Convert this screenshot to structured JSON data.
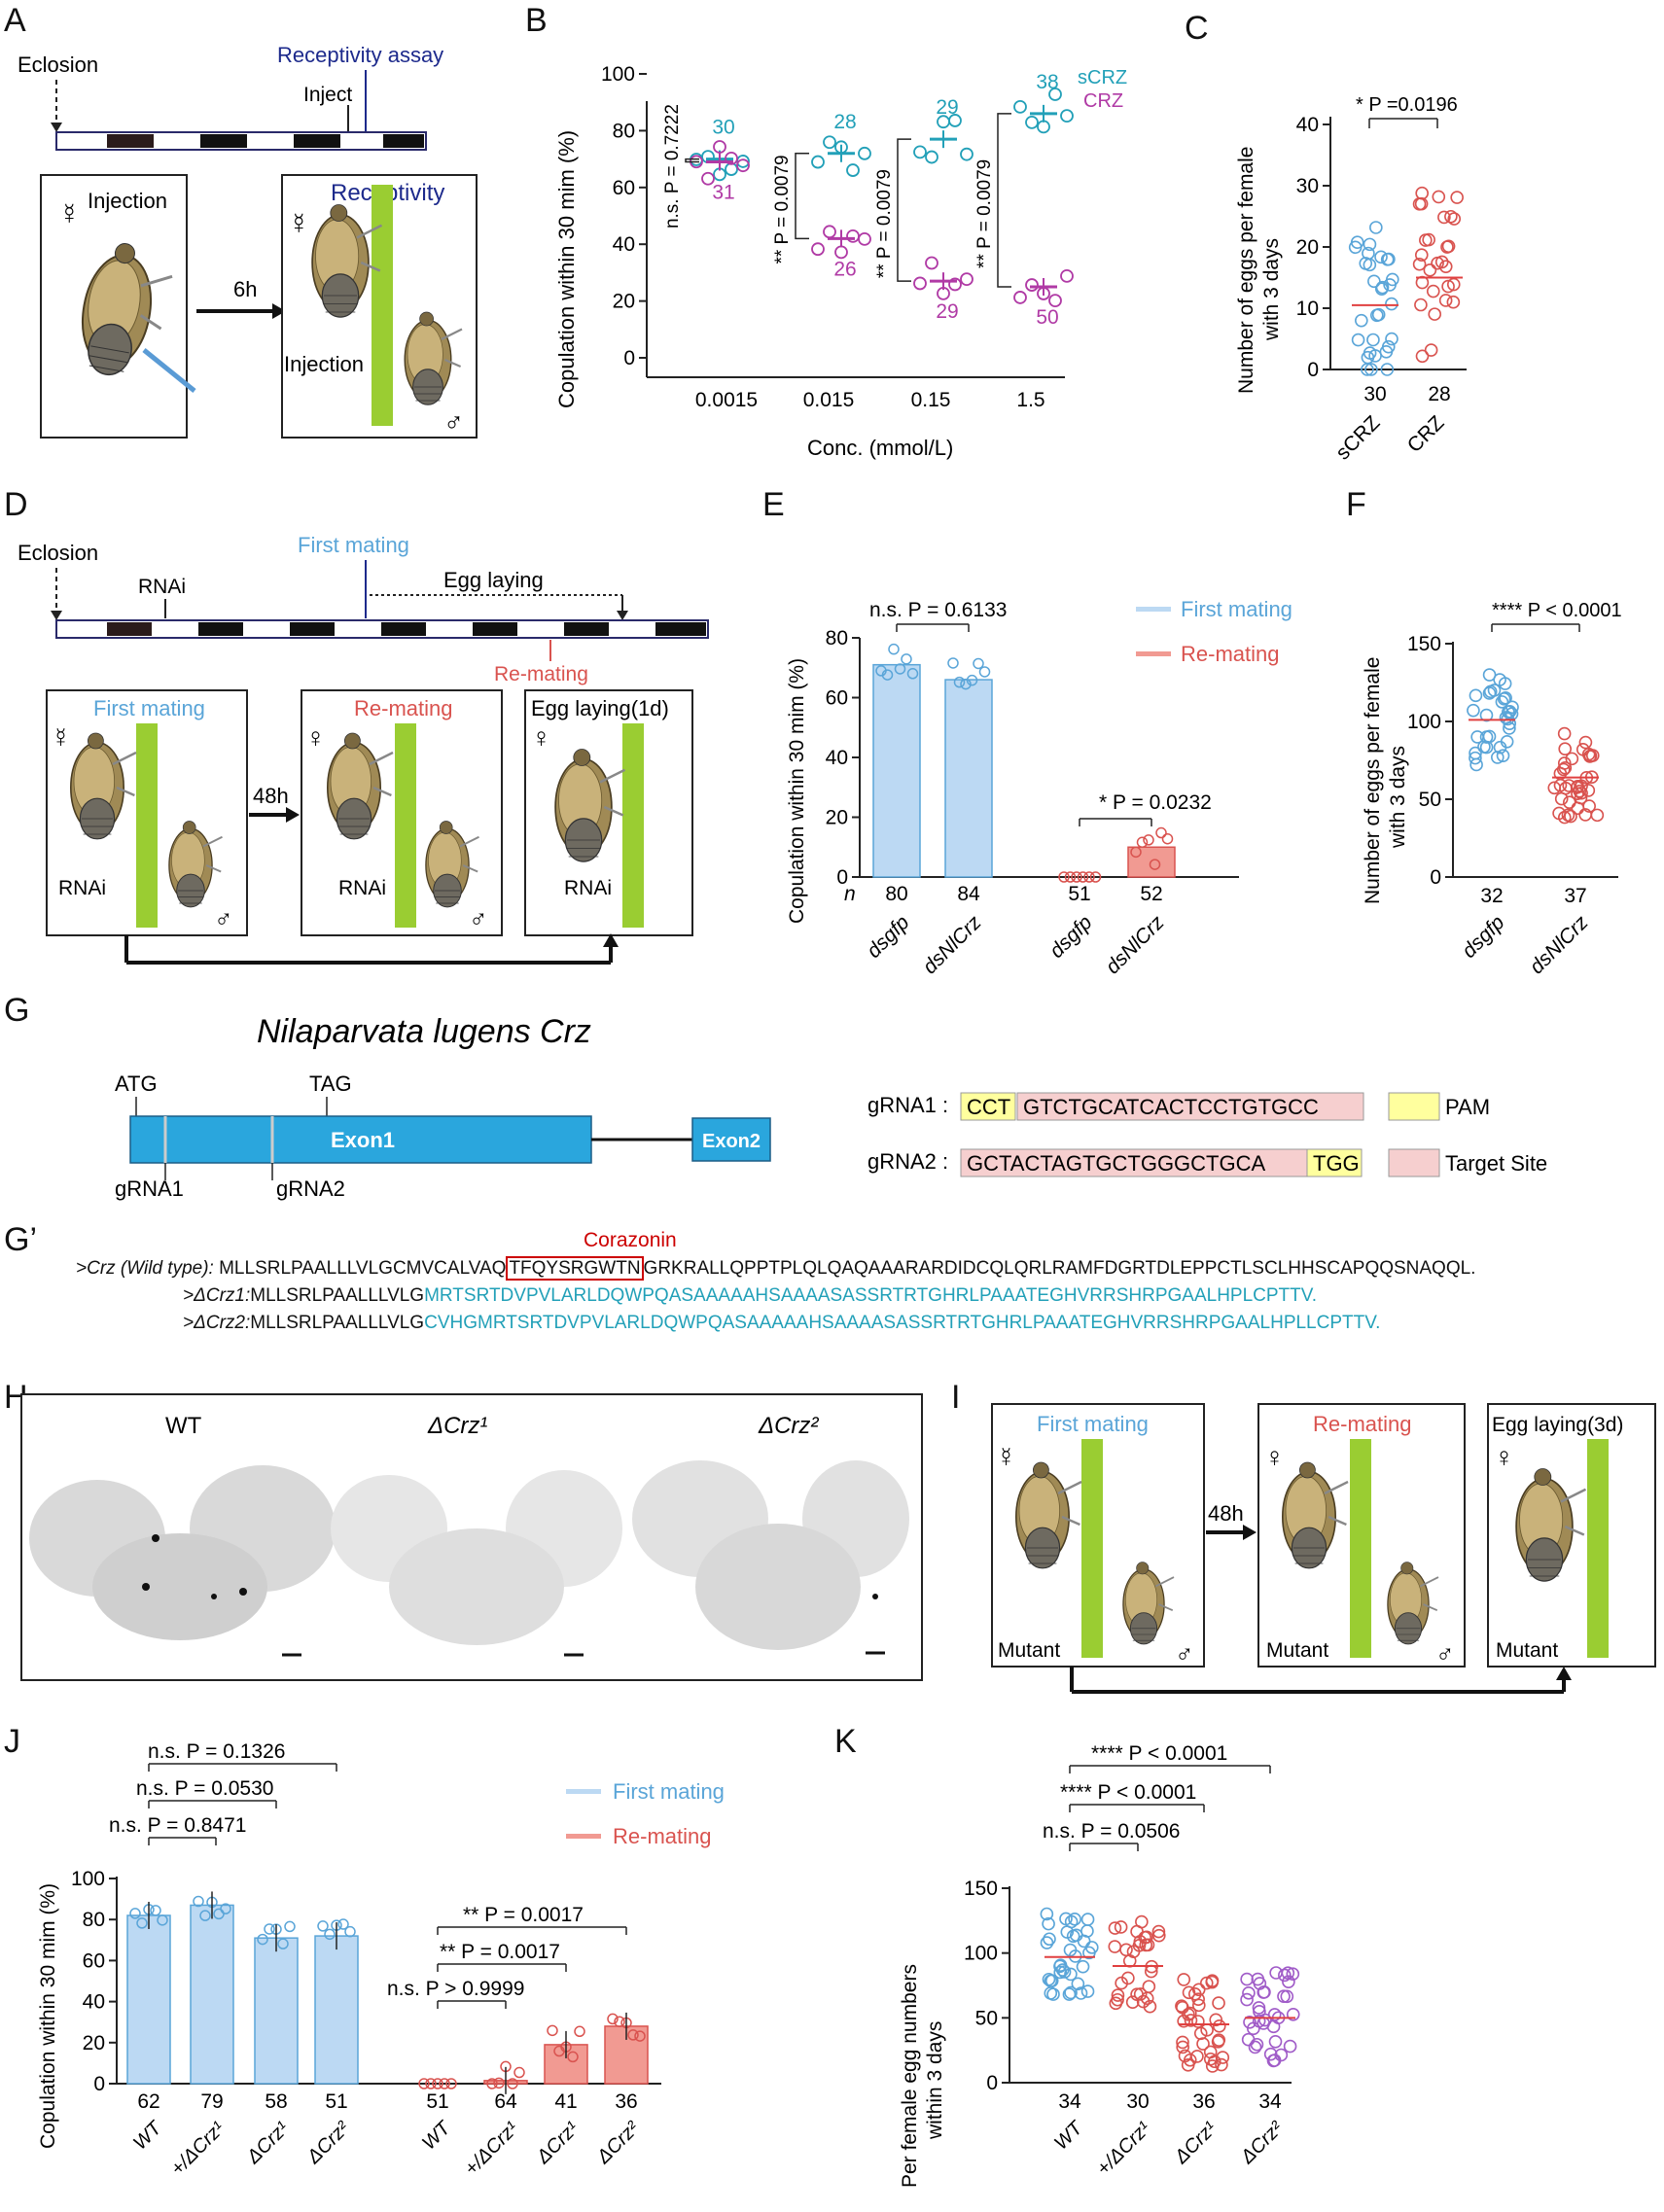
{
  "panels": {
    "A": "A",
    "B": "B",
    "C": "C",
    "D": "D",
    "E": "E",
    "F": "F",
    "G": "G",
    "Gp": "G’",
    "H": "H",
    "I": "I",
    "J": "J",
    "K": "K"
  },
  "colors": {
    "blue": "#5aa5d8",
    "red": "#d9534f",
    "cyan": "#22a0b8",
    "magenta": "#b03aa5",
    "navy": "#1d2a8c",
    "bar_blue": "#bcd9f3",
    "bar_red": "#f19a92",
    "yellow": "#ffff9e",
    "pink": "#f6cfcf",
    "stalk": "#9acd32",
    "exon": "#2aa6dd"
  },
  "panelA": {
    "eclosion": "Eclosion",
    "assay": "Receptivity assay",
    "inject": "Inject",
    "box1": "Injection",
    "box2_title": "Receptivity",
    "box2_sub": "Injection",
    "arrow": "6h"
  },
  "panelB": {
    "ylabel": "Copulation within 30 mim (%)",
    "xlabel": "Conc. (mmol/L)",
    "legend": [
      "sCRZ",
      "CRZ"
    ],
    "yticks": [
      "0",
      "20",
      "40",
      "60",
      "80",
      "100"
    ],
    "xticks": [
      "0.0015",
      "0.015",
      "0.15",
      "1.5"
    ],
    "stats": [
      "n.s. P = 0.7222",
      "** P = 0.0079",
      "** P = 0.0079",
      "** P = 0.0079"
    ],
    "n_top": [
      "30",
      "28",
      "29",
      "38"
    ],
    "n_bot": [
      "31",
      "26",
      "29",
      "50"
    ]
  },
  "panelC": {
    "ylabel1": "Number of eggs per female",
    "ylabel2": "with 3 days",
    "stat": "* P =0.0196",
    "yticks": [
      "0",
      "10",
      "20",
      "30",
      "40"
    ],
    "n": [
      "30",
      "28"
    ],
    "labels": [
      "sCRZ",
      "CRZ"
    ]
  },
  "panelD": {
    "eclosion": "Eclosion",
    "rnai": "RNAi",
    "first": "First mating",
    "egg": "Egg laying",
    "remating": "Re-mating",
    "box1": "First mating",
    "box2": "Re-mating",
    "box3": "Egg laying(1d)",
    "rnai_label": "RNAi",
    "arrow": "48h"
  },
  "panelE": {
    "ylabel": "Copulation within 30 mim (%)",
    "yticks": [
      "0",
      "20",
      "40",
      "60",
      "80"
    ],
    "legend": [
      "First mating",
      "Re-mating"
    ],
    "stat1": "n.s. P = 0.6133",
    "stat2": "* P = 0.0232",
    "n_label": "n",
    "n": [
      "80",
      "84",
      "51",
      "52"
    ],
    "labels": [
      "dsgfp",
      "dsNlCrz",
      "dsgfp",
      "dsNlCrz"
    ]
  },
  "panelF": {
    "ylabel1": "Number of eggs per female",
    "ylabel2": "with 3 days",
    "stat": "**** P < 0.0001",
    "yticks": [
      "0",
      "50",
      "100",
      "150"
    ],
    "n": [
      "32",
      "37"
    ],
    "labels": [
      "dsgfp",
      "dsNlCrz"
    ]
  },
  "panelG": {
    "title": "Nilaparvata lugens Crz",
    "atg": "ATG",
    "tag": "TAG",
    "exon1": "Exon1",
    "exon2": "Exon2",
    "g1": "gRNA1",
    "g2": "gRNA2",
    "g1_label": "gRNA1 :",
    "g2_label": "gRNA2 :",
    "g1_pam": "CCT",
    "g1_target": "GTCTGCATCACTCCTGTGCC",
    "g2_target": "GCTACTAGTGCTGGGCTGCA",
    "g2_pam": "TGG",
    "legend_pam": "PAM",
    "legend_target": "Target Site"
  },
  "panelGp": {
    "corazonin": "Corazonin",
    "wt_label": ">Crz (Wild type): ",
    "wt_pre": "MLLSRLPAALLLVLGCMVCALVAQ",
    "wt_box": "TFQYSRGWTN",
    "wt_post": "GRKRALLQPPTPLQLQAQAAARARDIDCQLQRLRAMFDGRTDLEPPCTLSCLHHSCAPQQSNAQQL.",
    "m1_label": ">ΔCrz1:",
    "m1_pre": "MLLSRLPAALLLVLG",
    "m1_post": "MRTSRTDVPVLARLDQWPQASAAAAAHSAAAASASSRTRTGHRLPAAATEGHVRRSHRPGAALHPLCPTTV.",
    "m2_label": ">ΔCrz2:",
    "m2_pre": "MLLSRLPAALLLVLG",
    "m2_post": "CVHGMRTSRTDVPVLARLDQWPQASAAAAAHSAAAASASSRTRTGHRLPAAATEGHVRRSHRPGAALHPLLCPTTV."
  },
  "panelH": {
    "labels": [
      "WT",
      "ΔCrz¹",
      "ΔCrz²"
    ]
  },
  "panelI": {
    "box1": "First mating",
    "box2": "Re-mating",
    "box3": "Egg laying(3d)",
    "mutant": "Mutant",
    "arrow": "48h"
  },
  "panelJ": {
    "ylabel": "Copulation within 30 mim (%)",
    "yticks": [
      "0",
      "20",
      "40",
      "60",
      "80",
      "100"
    ],
    "legend": [
      "First mating",
      "Re-mating"
    ],
    "stats": [
      "n.s. P = 0.1326",
      "n.s. P = 0.0530",
      "n.s. P = 0.8471",
      "** P = 0.0017",
      "** P = 0.0017",
      "n.s. P > 0.9999"
    ],
    "n": [
      "62",
      "79",
      "58",
      "51",
      "51",
      "64",
      "41",
      "36"
    ],
    "labels": [
      "WT",
      "+/ΔCrz¹",
      "ΔCrz¹",
      "ΔCrz²",
      "WT",
      "+/ΔCrz¹",
      "ΔCrz¹",
      "ΔCrz²"
    ]
  },
  "panelK": {
    "ylabel1": "Per female egg numbers",
    "ylabel2": "within 3 days",
    "yticks": [
      "0",
      "50",
      "100",
      "150"
    ],
    "stats": [
      "**** P < 0.0001",
      "**** P < 0.0001",
      "n.s. P = 0.0506"
    ],
    "n": [
      "34",
      "30",
      "36",
      "34"
    ],
    "labels": [
      "WT",
      "+/ΔCrz¹",
      "ΔCrz¹",
      "ΔCrz²"
    ]
  },
  "chart_data": [
    {
      "type": "scatter",
      "panel": "B",
      "categories": [
        "0.0015",
        "0.015",
        "0.15",
        "1.5"
      ],
      "series": [
        {
          "name": "sCRZ",
          "means": [
            70,
            72,
            77,
            86
          ]
        },
        {
          "name": "CRZ",
          "means": [
            69,
            42,
            27,
            25
          ]
        }
      ],
      "xlabel": "Conc. (mmol/L)",
      "ylabel": "Copulation within 30 mim (%)",
      "ylim": [
        0,
        100
      ]
    },
    {
      "type": "scatter",
      "panel": "C",
      "categories": [
        "sCRZ",
        "CRZ"
      ],
      "means": [
        10.5,
        15
      ],
      "n": [
        30,
        28
      ],
      "ylabel": "Number of eggs per female with 3 days",
      "ylim": [
        0,
        40
      ]
    },
    {
      "type": "bar",
      "panel": "E",
      "categories": [
        "dsgfp",
        "dsNlCrz",
        "dsgfp",
        "dsNlCrz"
      ],
      "values": [
        71,
        66,
        0,
        10
      ],
      "series_of": [
        "First mating",
        "First mating",
        "Re-mating",
        "Re-mating"
      ],
      "ylim": [
        0,
        80
      ]
    },
    {
      "type": "scatter",
      "panel": "F",
      "categories": [
        "dsgfp",
        "dsNlCrz"
      ],
      "means": [
        101,
        64
      ],
      "ylim": [
        0,
        150
      ]
    },
    {
      "type": "bar",
      "panel": "J",
      "categories": [
        "WT",
        "+/ΔCrz¹",
        "ΔCrz¹",
        "ΔCrz²",
        "WT",
        "+/ΔCrz¹",
        "ΔCrz¹",
        "ΔCrz²"
      ],
      "values": [
        82,
        87,
        71,
        72,
        0,
        1.5,
        19,
        28
      ],
      "series_of": [
        "First mating",
        "First mating",
        "First mating",
        "First mating",
        "Re-mating",
        "Re-mating",
        "Re-mating",
        "Re-mating"
      ],
      "ylim": [
        0,
        100
      ]
    },
    {
      "type": "scatter",
      "panel": "K",
      "categories": [
        "WT",
        "+/ΔCrz¹",
        "ΔCrz¹",
        "ΔCrz²"
      ],
      "means": [
        97,
        90,
        45,
        50
      ],
      "ylim": [
        0,
        150
      ]
    }
  ]
}
